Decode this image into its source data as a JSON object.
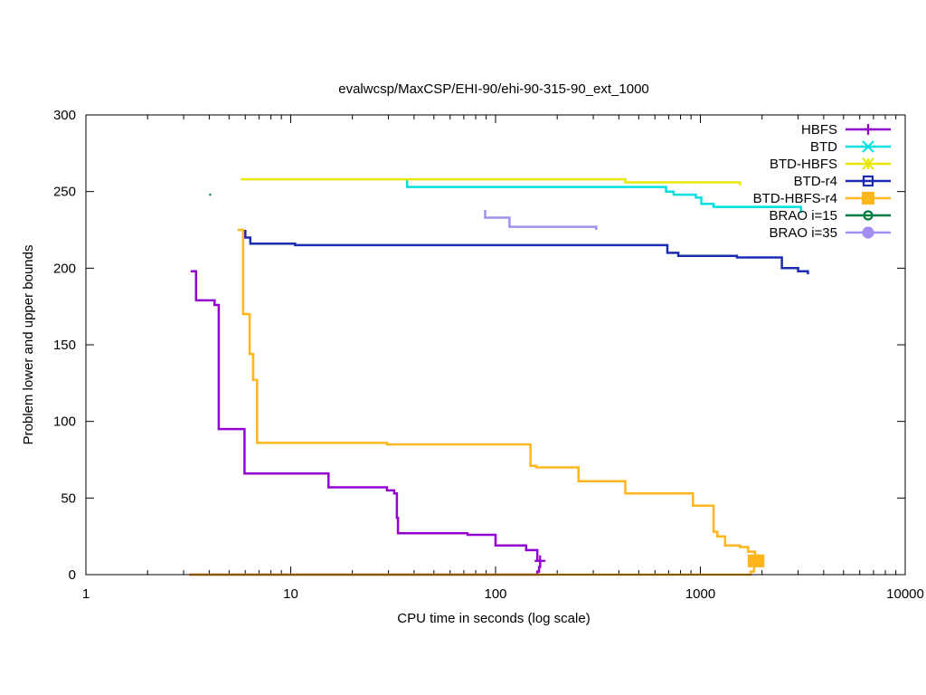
{
  "chart_data": {
    "type": "line",
    "title": "evalwcsp/MaxCSP/EHI-90/ehi-90-315-90_ext_1000",
    "xlabel": "CPU time in seconds (log scale)",
    "ylabel": "Problem lower and upper bounds",
    "xscale": "log",
    "xlim": [
      1,
      10000
    ],
    "ylim": [
      0,
      300
    ],
    "xticks": [
      1,
      10,
      100,
      1000,
      10000
    ],
    "xtick_labels": [
      "1",
      "10",
      "100",
      "1000",
      "10000"
    ],
    "yticks": [
      0,
      50,
      100,
      150,
      200,
      250,
      300
    ],
    "ytick_labels": [
      "0",
      "50",
      "100",
      "150",
      "200",
      "250",
      "300"
    ],
    "legend_position": "top-right",
    "series": [
      {
        "name": "HBFS",
        "color": "#9400d3",
        "marker": "plus",
        "upper": [
          [
            3.25,
            198
          ],
          [
            3.45,
            198
          ],
          [
            3.45,
            179
          ],
          [
            4.25,
            179
          ],
          [
            4.25,
            176
          ],
          [
            4.45,
            176
          ],
          [
            4.45,
            95
          ],
          [
            5.95,
            95
          ],
          [
            5.95,
            66
          ],
          [
            15.3,
            66
          ],
          [
            15.3,
            57
          ],
          [
            29.5,
            57
          ],
          [
            29.5,
            55
          ],
          [
            32.0,
            55
          ],
          [
            32.0,
            53
          ],
          [
            33.0,
            53
          ],
          [
            33.0,
            37
          ],
          [
            33.4,
            37
          ],
          [
            33.4,
            27
          ],
          [
            73.0,
            27
          ],
          [
            73.0,
            26
          ],
          [
            100,
            26
          ],
          [
            100,
            19
          ],
          [
            141,
            19
          ],
          [
            141,
            16
          ],
          [
            160,
            16
          ],
          [
            160,
            9
          ],
          [
            165,
            9
          ]
        ],
        "lower": [
          [
            3.2,
            0
          ],
          [
            160,
            0
          ],
          [
            160,
            2
          ],
          [
            163,
            2
          ],
          [
            163,
            5
          ],
          [
            165,
            5
          ],
          [
            165,
            9
          ]
        ],
        "marker_points": [
          [
            165,
            9
          ]
        ]
      },
      {
        "name": "BTD",
        "color": "#00e0e0",
        "marker": "cross",
        "upper": [
          [
            37,
            258
          ],
          [
            37,
            253
          ],
          [
            500,
            253
          ],
          [
            500,
            253
          ],
          [
            680,
            253
          ],
          [
            680,
            250
          ],
          [
            740,
            250
          ],
          [
            740,
            248
          ],
          [
            950,
            248
          ],
          [
            950,
            246
          ],
          [
            1010,
            246
          ],
          [
            1010,
            242
          ],
          [
            1160,
            242
          ],
          [
            1160,
            240
          ],
          [
            3100,
            240
          ],
          [
            3100,
            236
          ]
        ],
        "lower": [],
        "marker_points": []
      },
      {
        "name": "BTD-HBFS",
        "color": "#e8e800",
        "marker": "star",
        "upper": [
          [
            5.7,
            258
          ],
          [
            430,
            258
          ],
          [
            430,
            256
          ],
          [
            1560,
            256
          ],
          [
            1560,
            254
          ]
        ],
        "lower": [],
        "marker_points": []
      },
      {
        "name": "BTD-r4",
        "color": "#1c2bb4",
        "marker": "square",
        "upper": [
          [
            6.0,
            225
          ],
          [
            6.0,
            220
          ],
          [
            6.35,
            220
          ],
          [
            6.35,
            216
          ],
          [
            10.5,
            216
          ],
          [
            10.5,
            215
          ],
          [
            690,
            215
          ],
          [
            690,
            210
          ],
          [
            780,
            210
          ],
          [
            780,
            208
          ],
          [
            1510,
            208
          ],
          [
            1510,
            207
          ],
          [
            2500,
            207
          ],
          [
            2500,
            200
          ],
          [
            3000,
            200
          ],
          [
            3000,
            198
          ],
          [
            3350,
            198
          ],
          [
            3350,
            196
          ]
        ],
        "lower": [],
        "marker_points": []
      },
      {
        "name": "BTD-HBFS-r4",
        "color": "#ffb51c",
        "marker": "filled-square",
        "upper": [
          [
            5.5,
            225
          ],
          [
            5.85,
            225
          ],
          [
            5.85,
            170
          ],
          [
            6.3,
            170
          ],
          [
            6.3,
            144
          ],
          [
            6.55,
            144
          ],
          [
            6.55,
            127
          ],
          [
            6.85,
            127
          ],
          [
            6.85,
            86
          ],
          [
            29.5,
            86
          ],
          [
            29.5,
            85
          ],
          [
            148,
            85
          ],
          [
            148,
            71
          ],
          [
            158,
            71
          ],
          [
            158,
            70
          ],
          [
            254,
            70
          ],
          [
            254,
            61
          ],
          [
            430,
            61
          ],
          [
            430,
            53
          ],
          [
            920,
            53
          ],
          [
            920,
            45
          ],
          [
            1160,
            45
          ],
          [
            1160,
            28
          ],
          [
            1210,
            28
          ],
          [
            1210,
            25
          ],
          [
            1320,
            25
          ],
          [
            1320,
            19
          ],
          [
            1560,
            19
          ],
          [
            1560,
            18
          ],
          [
            1710,
            18
          ],
          [
            1710,
            15
          ],
          [
            1850,
            15
          ],
          [
            1850,
            10
          ],
          [
            1910,
            10
          ]
        ],
        "lower": [
          [
            3.2,
            0
          ],
          [
            1760,
            0
          ],
          [
            1760,
            2
          ],
          [
            1830,
            2
          ],
          [
            1830,
            6
          ],
          [
            1870,
            6
          ],
          [
            1870,
            9
          ],
          [
            1910,
            9
          ]
        ],
        "marker_points": [
          [
            1830,
            9
          ],
          [
            1910,
            9
          ]
        ]
      },
      {
        "name": "BRAO i=15",
        "color": "#007c3f",
        "marker": "circle",
        "upper": [
          [
            4.0,
            248
          ],
          [
            4.08,
            248
          ]
        ],
        "lower": [],
        "marker_points": []
      },
      {
        "name": "BRAO i=35",
        "color": "#a38ef0",
        "marker": "filled-circle",
        "upper": [
          [
            89,
            238
          ],
          [
            89,
            233
          ],
          [
            117,
            233
          ],
          [
            117,
            227
          ],
          [
            310,
            227
          ],
          [
            310,
            225
          ]
        ],
        "lower": [],
        "marker_points": []
      }
    ]
  }
}
